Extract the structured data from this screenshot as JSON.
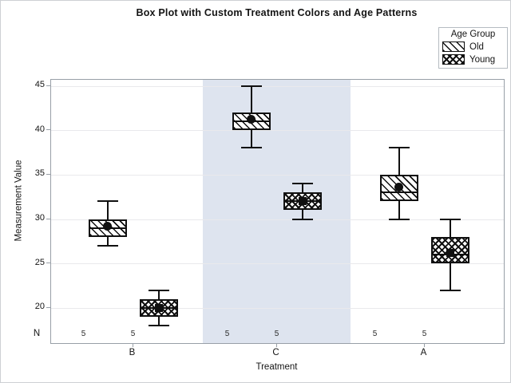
{
  "chart_data": {
    "type": "box",
    "title": "Box Plot with Custom Treatment Colors and Age Patterns",
    "xlabel": "Treatment",
    "ylabel": "Measurement Value",
    "categories": [
      "B",
      "C",
      "A"
    ],
    "y_axis": {
      "ticks": [
        45,
        40,
        35,
        30,
        25,
        20
      ],
      "range_shown": [
        17,
        45.7
      ],
      "grid": true
    },
    "reference_band": {
      "category": "C",
      "color": "#dee4ef"
    },
    "legend": {
      "title": "Age Group",
      "position": "top-right",
      "entries": [
        {
          "label": "Old",
          "pattern": "diagonal-hatch"
        },
        {
          "label": "Young",
          "pattern": "crosshatch"
        }
      ]
    },
    "series": [
      {
        "name": "Old",
        "pattern": "diagonal-hatch",
        "mean_marker": "circle",
        "boxes": [
          {
            "category": "B",
            "min": 27,
            "q1": 28,
            "median": 29,
            "q3": 30,
            "max": 32,
            "mean": 29.2,
            "n": 5
          },
          {
            "category": "C",
            "min": 38,
            "q1": 40,
            "median": 41,
            "q3": 42,
            "max": 45,
            "mean": 41.2,
            "n": 5
          },
          {
            "category": "A",
            "min": 30,
            "q1": 32,
            "median": 33,
            "q3": 35,
            "max": 38,
            "mean": 33.6,
            "n": 5
          }
        ]
      },
      {
        "name": "Young",
        "pattern": "crosshatch",
        "mean_marker": "square",
        "boxes": [
          {
            "category": "B",
            "min": 18,
            "q1": 19,
            "median": 20,
            "q3": 21,
            "max": 22,
            "mean": 20.0,
            "n": 5
          },
          {
            "category": "C",
            "min": 30,
            "q1": 31,
            "median": 32,
            "q3": 33,
            "max": 34,
            "mean": 32.0,
            "n": 5
          },
          {
            "category": "A",
            "min": 22,
            "q1": 25,
            "median": 26,
            "q3": 28,
            "max": 30,
            "mean": 26.2,
            "n": 5
          }
        ]
      }
    ],
    "n_row": {
      "label": "N",
      "values": [
        5,
        5,
        5,
        5,
        5,
        5
      ]
    },
    "colors": {
      "box_fill": "#ffffff",
      "box_line": "#101010",
      "frame": "#989fa7",
      "gridline": "#e9e9ec",
      "band": "#dee4ef",
      "text": "#141414"
    }
  }
}
